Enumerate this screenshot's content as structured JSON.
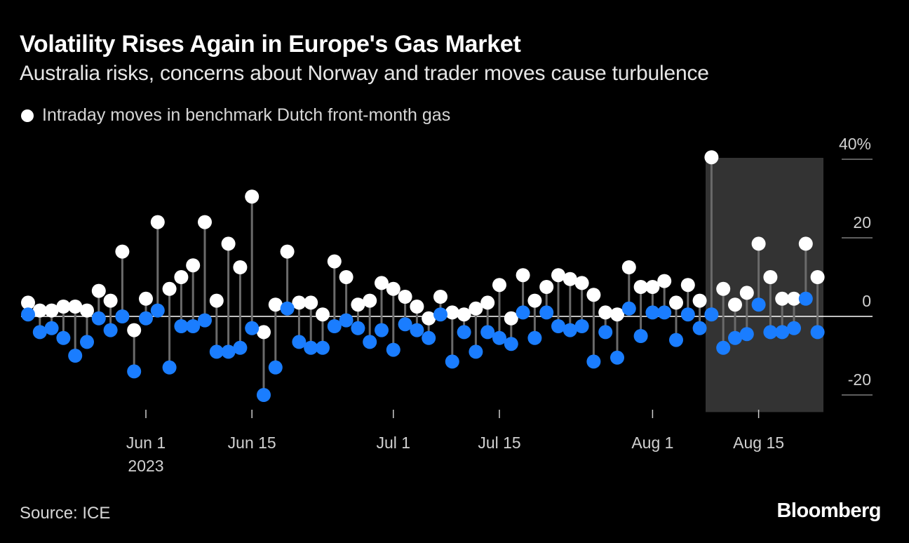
{
  "chart_data": {
    "type": "scatter",
    "title": "Volatility Rises Again in Europe's Gas Market",
    "subtitle": "Australia risks, concerns about Norway and trader moves cause turbulence",
    "legend": [
      {
        "label": "Intraday moves in benchmark Dutch front-month gas",
        "color": "#ffffff"
      }
    ],
    "ylabel": "%",
    "ylim": [
      -24,
      40
    ],
    "y_ticks": [
      {
        "value": 40,
        "label": "40%"
      },
      {
        "value": 20,
        "label": "20"
      },
      {
        "value": 0,
        "label": "0"
      },
      {
        "value": -20,
        "label": "-20"
      }
    ],
    "x_ticks": [
      {
        "day": 10,
        "label": "Jun 1",
        "sublabel": "2023"
      },
      {
        "day": 19,
        "label": "Jun 15",
        "sublabel": ""
      },
      {
        "day": 31,
        "label": "Jul 1",
        "sublabel": ""
      },
      {
        "day": 40,
        "label": "Jul 15",
        "sublabel": ""
      },
      {
        "day": 53,
        "label": "Aug 1",
        "sublabel": ""
      },
      {
        "day": 62,
        "label": "Aug 15",
        "sublabel": ""
      }
    ],
    "highlight": {
      "from_day": 57.5,
      "to_day": 67.5
    },
    "series": [
      {
        "name": "Intraday high",
        "color": "#ffffff",
        "values": [
          3.5,
          1.5,
          1.5,
          2.5,
          2.5,
          1.5,
          6.5,
          4,
          16.5,
          -3.5,
          4.5,
          24,
          7,
          10,
          13,
          24,
          4,
          18.5,
          12.5,
          30.5,
          -4,
          3,
          16.5,
          3.5,
          3.5,
          0.5,
          14,
          10,
          3,
          4,
          8.5,
          7,
          5,
          2.5,
          -0.5,
          5,
          1,
          0.5,
          2,
          3.5,
          8,
          -0.5,
          10.5,
          4,
          7.5,
          10.5,
          9.5,
          8.5,
          5.5,
          1,
          0.5,
          12.5,
          7.5,
          7.5,
          9,
          3.5,
          8,
          4,
          40.5,
          7,
          3,
          6,
          18.5,
          10,
          4.5,
          4.5,
          18.5,
          10
        ]
      },
      {
        "name": "Intraday low",
        "color": "#1a7dff",
        "values": [
          0.5,
          -4,
          -3,
          -5.5,
          -10,
          -6.5,
          -0.5,
          -3.5,
          0,
          -14,
          -0.5,
          1.5,
          -13,
          -2.5,
          -2.5,
          -1,
          -9,
          -9,
          -8,
          -3,
          -20,
          -13,
          2,
          -6.5,
          -8,
          -8,
          -2.5,
          -1,
          -3,
          -6.5,
          -3.5,
          -8.5,
          -2,
          -3.5,
          -5.5,
          0.5,
          -11.5,
          -4,
          -9,
          -4,
          -5.5,
          -7,
          1,
          -5.5,
          1,
          -2.5,
          -3.5,
          -2.5,
          -11.5,
          -4,
          -10.5,
          2,
          -5,
          1,
          1,
          -6,
          0.5,
          -3,
          0.5,
          -8,
          -5.5,
          -4.5,
          3,
          -4,
          -4,
          -3,
          4.5,
          -4
        ]
      }
    ]
  },
  "source": "Source: ICE",
  "brand": "Bloomberg"
}
